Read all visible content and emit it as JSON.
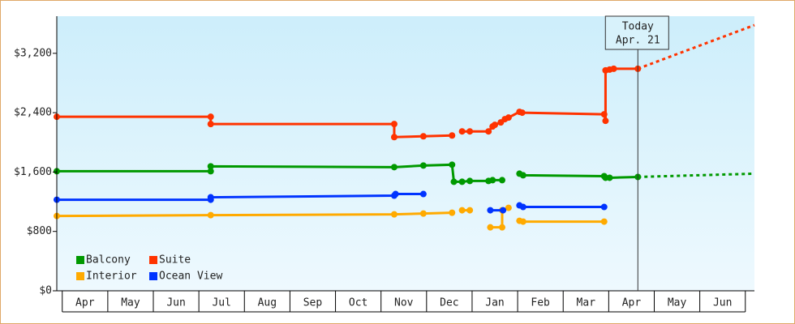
{
  "chart_data": {
    "type": "line",
    "xlim": [
      -0.12,
      15.2
    ],
    "ylim": [
      0,
      3700
    ],
    "xticks": [
      {
        "value": 0.5,
        "label": "Apr"
      },
      {
        "value": 1.5,
        "label": "May"
      },
      {
        "value": 2.5,
        "label": "Jun"
      },
      {
        "value": 3.5,
        "label": "Jul"
      },
      {
        "value": 4.5,
        "label": "Aug"
      },
      {
        "value": 5.5,
        "label": "Sep"
      },
      {
        "value": 6.5,
        "label": "Oct"
      },
      {
        "value": 7.5,
        "label": "Nov"
      },
      {
        "value": 8.5,
        "label": "Dec"
      },
      {
        "value": 9.5,
        "label": "Jan"
      },
      {
        "value": 10.5,
        "label": "Feb"
      },
      {
        "value": 11.5,
        "label": "Mar"
      },
      {
        "value": 12.5,
        "label": "Apr"
      },
      {
        "value": 13.5,
        "label": "May"
      },
      {
        "value": 14.5,
        "label": "Jun"
      }
    ],
    "yticks": [
      {
        "value": 0,
        "label": "$0"
      },
      {
        "value": 800,
        "label": "$800"
      },
      {
        "value": 1600,
        "label": "$1,600"
      },
      {
        "value": 2400,
        "label": "$2,400"
      },
      {
        "value": 3200,
        "label": "$3,200"
      }
    ],
    "today": {
      "x": 12.64,
      "label": "Today",
      "date": "Apr. 21"
    },
    "series": [
      {
        "name": "Balcony",
        "color": "#009900",
        "x": [
          -0.12,
          3.26,
          3.26,
          7.29,
          7.93,
          8.56,
          8.6,
          8.78,
          8.95,
          9.36,
          9.45,
          9.66,
          null,
          10.04,
          10.12,
          11.9,
          11.93,
          12.02,
          12.64
        ],
        "values": [
          1611,
          1611,
          1677,
          1666,
          1688,
          1699,
          1469,
          1469,
          1480,
          1480,
          1491,
          1491,
          null,
          1578,
          1556,
          1545,
          1523,
          1523,
          1534
        ],
        "forecast": {
          "x": [
            12.64,
            15.2
          ],
          "values": [
            1534,
            1578
          ]
        }
      },
      {
        "name": "Suite",
        "color": "#ff3300",
        "x": [
          -0.12,
          3.26,
          3.26,
          7.29,
          7.29,
          7.93,
          8.56,
          null,
          8.78,
          8.95,
          9.36,
          9.45,
          9.5,
          9.63,
          9.72,
          9.8,
          10.04,
          10.1,
          11.9,
          11.93,
          11.93,
          12.02,
          12.11,
          12.64
        ],
        "values": [
          2345,
          2345,
          2247,
          2247,
          2071,
          2082,
          2093,
          null,
          2148,
          2148,
          2148,
          2214,
          2236,
          2269,
          2313,
          2334,
          2411,
          2400,
          2378,
          2290,
          2970,
          2981,
          2992,
          2992
        ],
        "forecast": {
          "x": [
            12.64,
            15.2
          ],
          "values": [
            2992,
            3580
          ]
        }
      },
      {
        "name": "Interior",
        "color": "#ffaa00",
        "x": [
          -0.12,
          3.26,
          7.29,
          7.93,
          8.56,
          null,
          8.78,
          8.95,
          null,
          9.4,
          9.66,
          9.66,
          9.8,
          null,
          10.04,
          10.12,
          11.9
        ],
        "values": [
          1008,
          1019,
          1030,
          1041,
          1052,
          null,
          1085,
          1085,
          null,
          855,
          855,
          1085,
          1118,
          null,
          943,
          932,
          932
        ]
      },
      {
        "name": "Ocean View",
        "color": "#0033ff",
        "x": [
          -0.12,
          3.26,
          3.26,
          7.29,
          7.32,
          7.93,
          null,
          9.4,
          9.68,
          null,
          10.04,
          10.12,
          11.9
        ],
        "values": [
          1227,
          1227,
          1260,
          1282,
          1304,
          1304,
          null,
          1085,
          1085,
          null,
          1151,
          1129,
          1129
        ]
      }
    ]
  }
}
